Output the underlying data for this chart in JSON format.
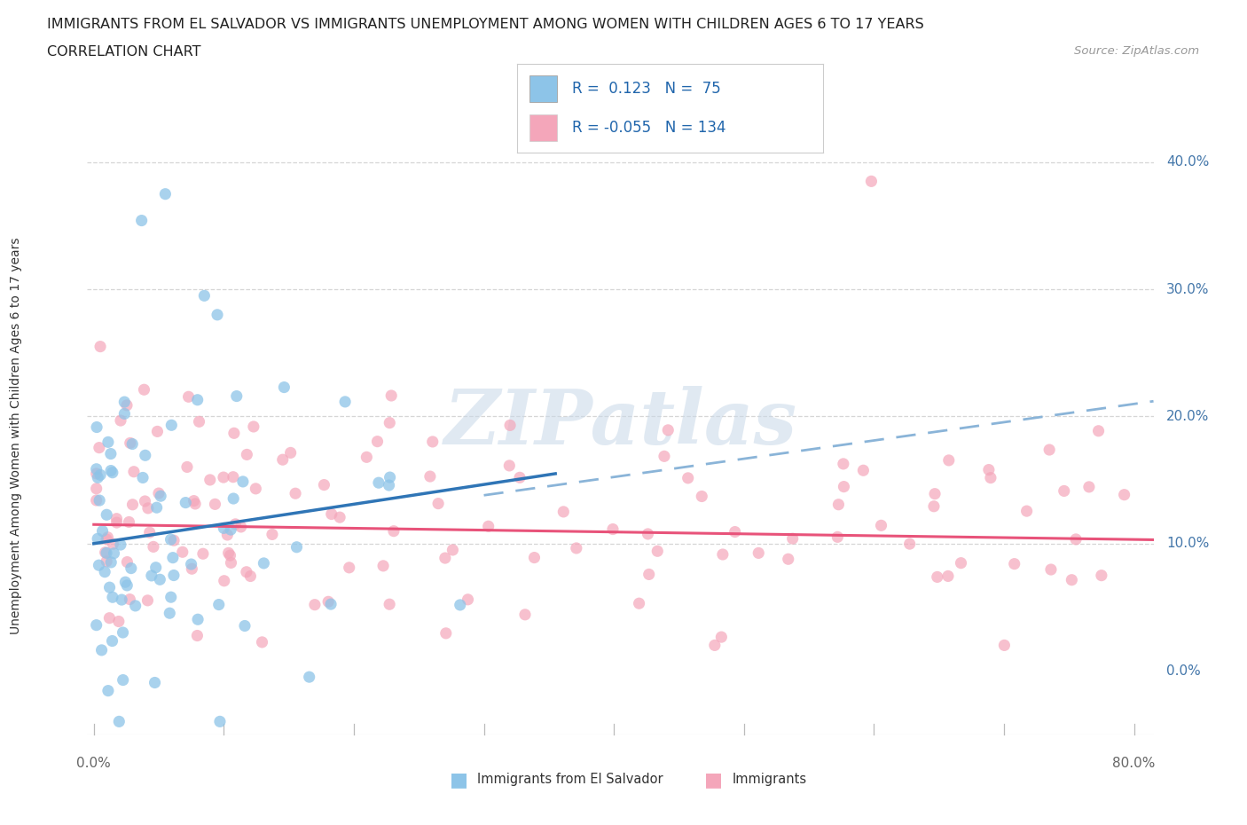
{
  "title_line1": "IMMIGRANTS FROM EL SALVADOR VS IMMIGRANTS UNEMPLOYMENT AMONG WOMEN WITH CHILDREN AGES 6 TO 17 YEARS",
  "title_line2": "CORRELATION CHART",
  "source_text": "Source: ZipAtlas.com",
  "ylabel": "Unemployment Among Women with Children Ages 6 to 17 years",
  "ytick_values": [
    0.0,
    0.1,
    0.2,
    0.3,
    0.4
  ],
  "ytick_labels": [
    "0.0%",
    "10.0%",
    "20.0%",
    "30.0%",
    "40.0%"
  ],
  "xlim": [
    -0.005,
    0.815
  ],
  "ylim": [
    -0.05,
    0.44
  ],
  "color_blue": "#8dc4e8",
  "color_pink": "#f4a6ba",
  "color_blue_line": "#2f75b6",
  "color_pink_line": "#e8537a",
  "color_dashed": "#8ab4d8",
  "color_text_stat": "#2166ac",
  "color_grid": "#cccccc",
  "color_axis": "#bbbbbb",
  "watermark_text": "ZIPatlas",
  "legend_text_1": "R =  0.123   N =  75",
  "legend_text_2": "R = -0.055   N = 134",
  "bottom_legend_1": "Immigrants from El Salvador",
  "bottom_legend_2": "Immigrants",
  "blue_line_x": [
    0.0,
    0.355
  ],
  "blue_line_y": [
    0.1,
    0.155
  ],
  "dashed_line_x": [
    0.3,
    0.815
  ],
  "dashed_line_y": [
    0.138,
    0.212
  ],
  "pink_line_x": [
    0.0,
    0.815
  ],
  "pink_line_y": [
    0.115,
    0.103
  ],
  "n_blue": 75,
  "n_pink": 134
}
